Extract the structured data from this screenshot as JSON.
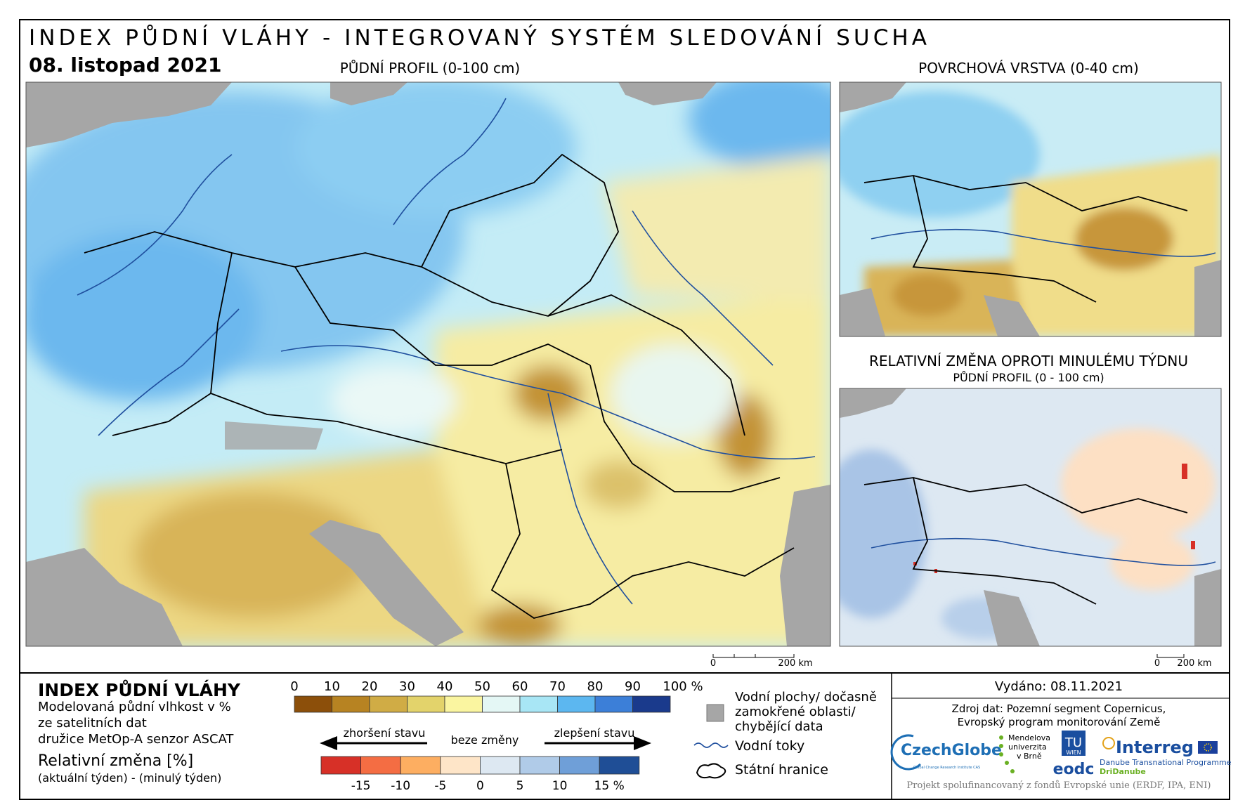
{
  "header": {
    "title": "INDEX PŮDNÍ VLÁHY - INTEGROVANÝ SYSTÉM SLEDOVÁNÍ SUCHA",
    "date": "08. listopad 2021"
  },
  "maps": [
    {
      "label": "PŮDNÍ PROFIL (0-100 cm)",
      "scale": [
        "0",
        "200 km"
      ]
    },
    {
      "label": "POVRCHOVÁ VRSTVA (0-40 cm)"
    },
    {
      "label": "RELATIVNÍ ZMĚNA OPROTI MINULÉMU TÝDNU",
      "sublabel": "PŮDNÍ PROFIL (0 - 100 cm)",
      "scale": [
        "0",
        "200 km"
      ]
    }
  ],
  "legend": {
    "title": "INDEX PŮDNÍ VLÁHY",
    "description": [
      "Modelovaná půdní vlhkost v %",
      "ze satelitních dat",
      "družice MetOp-A senzor ASCAT"
    ],
    "change_title": "Relativní změna [%]",
    "change_description": "(aktuální týden) - (minulý týden)",
    "index_scale": [
      "0",
      "10",
      "20",
      "30",
      "40",
      "50",
      "60",
      "70",
      "80",
      "90",
      "100 %"
    ],
    "index_colors": [
      "#8c4f0a",
      "#b78322",
      "#d0ac45",
      "#e3d36b",
      "#faf5a0",
      "#e4f7f5",
      "#a8e6f5",
      "#5cb7f0",
      "#3c7fd8",
      "#1a3a8c"
    ],
    "arrows": [
      "zhoršení stavu",
      "beze změny",
      "zlepšení stavu"
    ],
    "change_scale": [
      "-15",
      "-10",
      "-5",
      "0",
      "5",
      "10",
      "15 %"
    ],
    "change_colors": [
      "#d73027",
      "#f46d43",
      "#fdae61",
      "#fee5c8",
      "#dde8f2",
      "#b0cbe8",
      "#6f9fd8",
      "#1f4e96"
    ],
    "items": [
      [
        "Vodní plochy/ dočasně",
        "zamokřené oblasti/",
        "chybějící data"
      ],
      "Vodní toky",
      "Státní hranice"
    ]
  },
  "credits": {
    "issued": "Vydáno: 08.11.2021",
    "source": [
      "Zdroj dat: Pozemní segment Copernicus,",
      "Evropský program monitorování Země"
    ],
    "logos": {
      "czechglobe": "CzechGlobe",
      "czechglobe_sub": "Global Change Research Institute CAS",
      "mendel": [
        "Mendelova",
        "univerzita",
        "v Brně"
      ],
      "tu": [
        "TU",
        "WIEN"
      ],
      "eodc": "eodc",
      "interreg": "Interreg",
      "interreg_sub": [
        "Danube Transnational Programme",
        "DriDanube"
      ]
    },
    "footer": "Projekt spolufinancovaný z fondů Evropské unie (ERDF, IPA, ENI)"
  }
}
